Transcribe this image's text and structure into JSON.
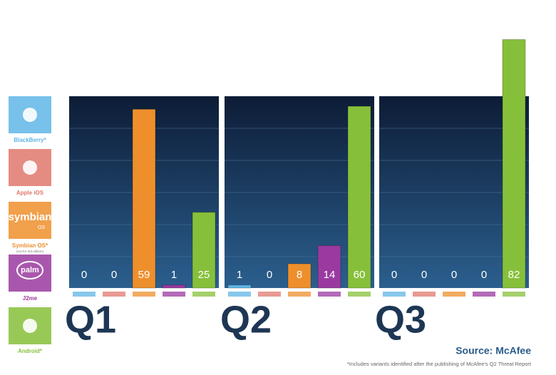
{
  "chart_data": {
    "type": "bar",
    "categories": [
      "Q1",
      "Q2",
      "Q3"
    ],
    "series": [
      {
        "name": "BlackBerry*",
        "color": "#5fb6e6",
        "values": [
          0,
          1,
          0
        ]
      },
      {
        "name": "Apple iOS",
        "color": "#e0786c",
        "values": [
          0,
          0,
          0
        ]
      },
      {
        "name": "Symbian OS*",
        "color": "#ee8f2c",
        "values": [
          59,
          8,
          0
        ],
        "logo": "symbian",
        "logo_sub": "OS",
        "note": "(not for 3rd edition)"
      },
      {
        "name": "J2me",
        "color": "#9a3aa0",
        "values": [
          1,
          14,
          0
        ],
        "logo": "palm"
      },
      {
        "name": "Android*",
        "color": "#86c03a",
        "values": [
          25,
          60,
          82
        ]
      }
    ],
    "source": "Source: McAfee",
    "footnote": "*Includes variants identified after the publishing of McAfee's Q2 Threat Report"
  }
}
